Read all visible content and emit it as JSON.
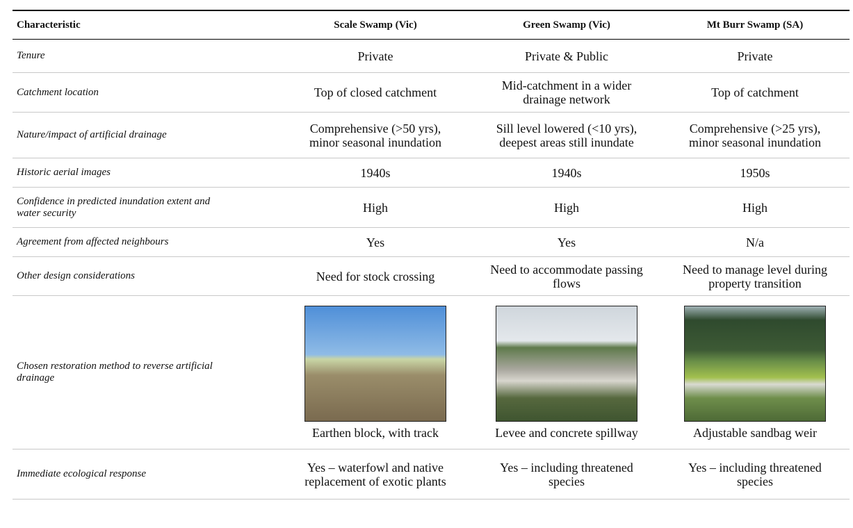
{
  "table": {
    "header": [
      "Characteristic",
      "Scale Swamp (Vic)",
      "Green Swamp (Vic)",
      "Mt Burr Swamp (SA)"
    ],
    "rows": [
      [
        "Tenure",
        "Private",
        "Private & Public",
        "Private"
      ],
      [
        "Catchment location",
        "Top of closed catchment",
        "Mid-catchment in a wider drainage network",
        "Top of catchment"
      ],
      [
        "Nature/impact of artificial drainage",
        "Comprehensive (>50 yrs), minor seasonal inundation",
        "Sill level lowered (<10 yrs), deepest areas still inundate",
        "Comprehensive (>25 yrs), minor seasonal inundation"
      ],
      [
        "Historic aerial images",
        "1940s",
        "1940s",
        "1950s"
      ],
      [
        "Confidence in predicted inundation extent and water security",
        "High",
        "High",
        "High"
      ],
      [
        "Agreement from affected neighbours",
        "Yes",
        "Yes",
        "N/a"
      ],
      [
        "Other design considerations",
        "Need for stock crossing",
        "Need to accommodate passing flows",
        "Need to manage level during property transition"
      ],
      [
        "Chosen restoration method to reverse artificial drainage",
        "Earthen block, with track",
        "Levee and concrete spillway",
        "Adjustable sandbag weir"
      ],
      [
        "Immediate ecological response",
        "Yes – waterfowl and native replacement of exotic plants",
        "Yes – including threatened species",
        "Yes – including threatened species"
      ]
    ]
  }
}
